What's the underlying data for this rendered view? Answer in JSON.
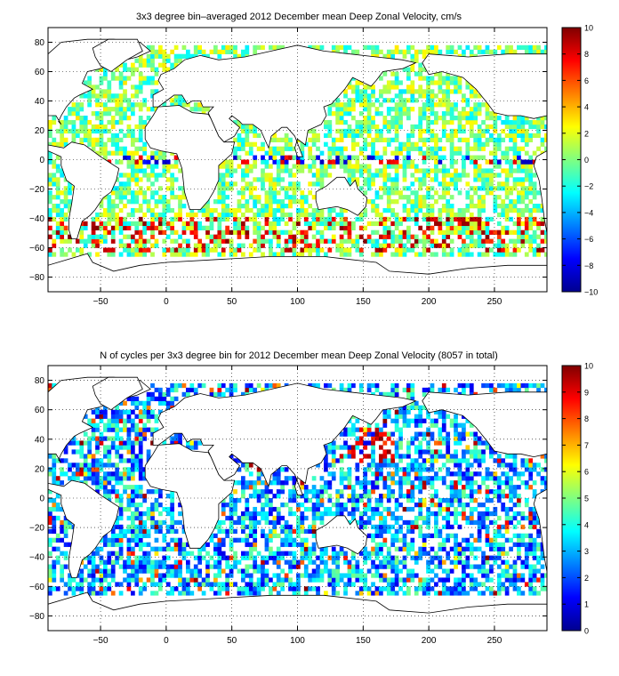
{
  "figure": {
    "colors": {
      "background": "#ffffff",
      "axes": "#000000",
      "grid": "#000000",
      "land_outline": "#000000",
      "colormap": [
        "#00008f",
        "#0000ff",
        "#0080ff",
        "#00ffff",
        "#80ff80",
        "#ffff00",
        "#ff8000",
        "#ff0000",
        "#800000"
      ]
    }
  },
  "chart_data": [
    {
      "type": "heatmap",
      "title": "3x3 degree bin–averaged 2012 December mean Deep Zonal Velocity, cm/s",
      "xlabel": "",
      "ylabel": "",
      "xlim": [
        -90,
        290
      ],
      "ylim": [
        -90,
        90
      ],
      "bin_size_deg": 3,
      "x_ticks": [
        -50,
        0,
        50,
        100,
        150,
        200,
        250
      ],
      "x_tick_labels": [
        "−50",
        "0",
        "50",
        "100",
        "150",
        "200",
        "250"
      ],
      "y_ticks": [
        80,
        60,
        40,
        20,
        0,
        -20,
        -40,
        -60,
        -80
      ],
      "y_tick_labels": [
        "80",
        "60",
        "40",
        "20",
        "0",
        "−20",
        "−40",
        "−60",
        "−80"
      ],
      "grid": true,
      "colorbar": {
        "location": "right",
        "range": [
          -10,
          10
        ],
        "ticks": [
          10,
          8,
          6,
          4,
          2,
          0,
          -2,
          -4,
          -6,
          -8,
          -10
        ],
        "tick_labels": [
          "10",
          "8",
          "6",
          "4",
          "2",
          "0",
          "−2",
          "−4",
          "−6",
          "−8",
          "−10"
        ]
      },
      "colormap": "jet",
      "description_of_values": "sparse gridded bins; most values near 0 (green/cyan), strong eastward (dark red, ~8-10) bands along the Antarctic Circumpolar Current near -40 to -60 latitude and along the equator"
    },
    {
      "type": "heatmap",
      "title": "N of cycles per 3x3 degree bin for 2012 December mean Deep Zonal Velocity (8057 in total)",
      "xlabel": "",
      "ylabel": "",
      "xlim": [
        -90,
        290
      ],
      "ylim": [
        -90,
        90
      ],
      "bin_size_deg": 3,
      "total_cycles": 8057,
      "x_ticks": [
        -50,
        0,
        50,
        100,
        150,
        200,
        250
      ],
      "x_tick_labels": [
        "−50",
        "0",
        "50",
        "100",
        "150",
        "200",
        "250"
      ],
      "y_ticks": [
        80,
        60,
        40,
        20,
        0,
        -20,
        -40,
        -60,
        -80
      ],
      "y_tick_labels": [
        "80",
        "60",
        "40",
        "20",
        "0",
        "−20",
        "−40",
        "−60",
        "−80"
      ],
      "grid": true,
      "colorbar": {
        "location": "right",
        "range": [
          0,
          10
        ],
        "ticks": [
          10,
          9,
          8,
          7,
          6,
          5,
          4,
          3,
          2,
          1,
          0
        ],
        "tick_labels": [
          "10",
          "9",
          "8",
          "7",
          "6",
          "5",
          "4",
          "3",
          "2",
          "1",
          "0"
        ]
      },
      "colormap": "jet",
      "description_of_values": "count of cycles per bin, mostly 1-4 (blue/cyan); high counts (dark red, ~10) in the Kuroshio region near 150E, 30-45N"
    }
  ]
}
